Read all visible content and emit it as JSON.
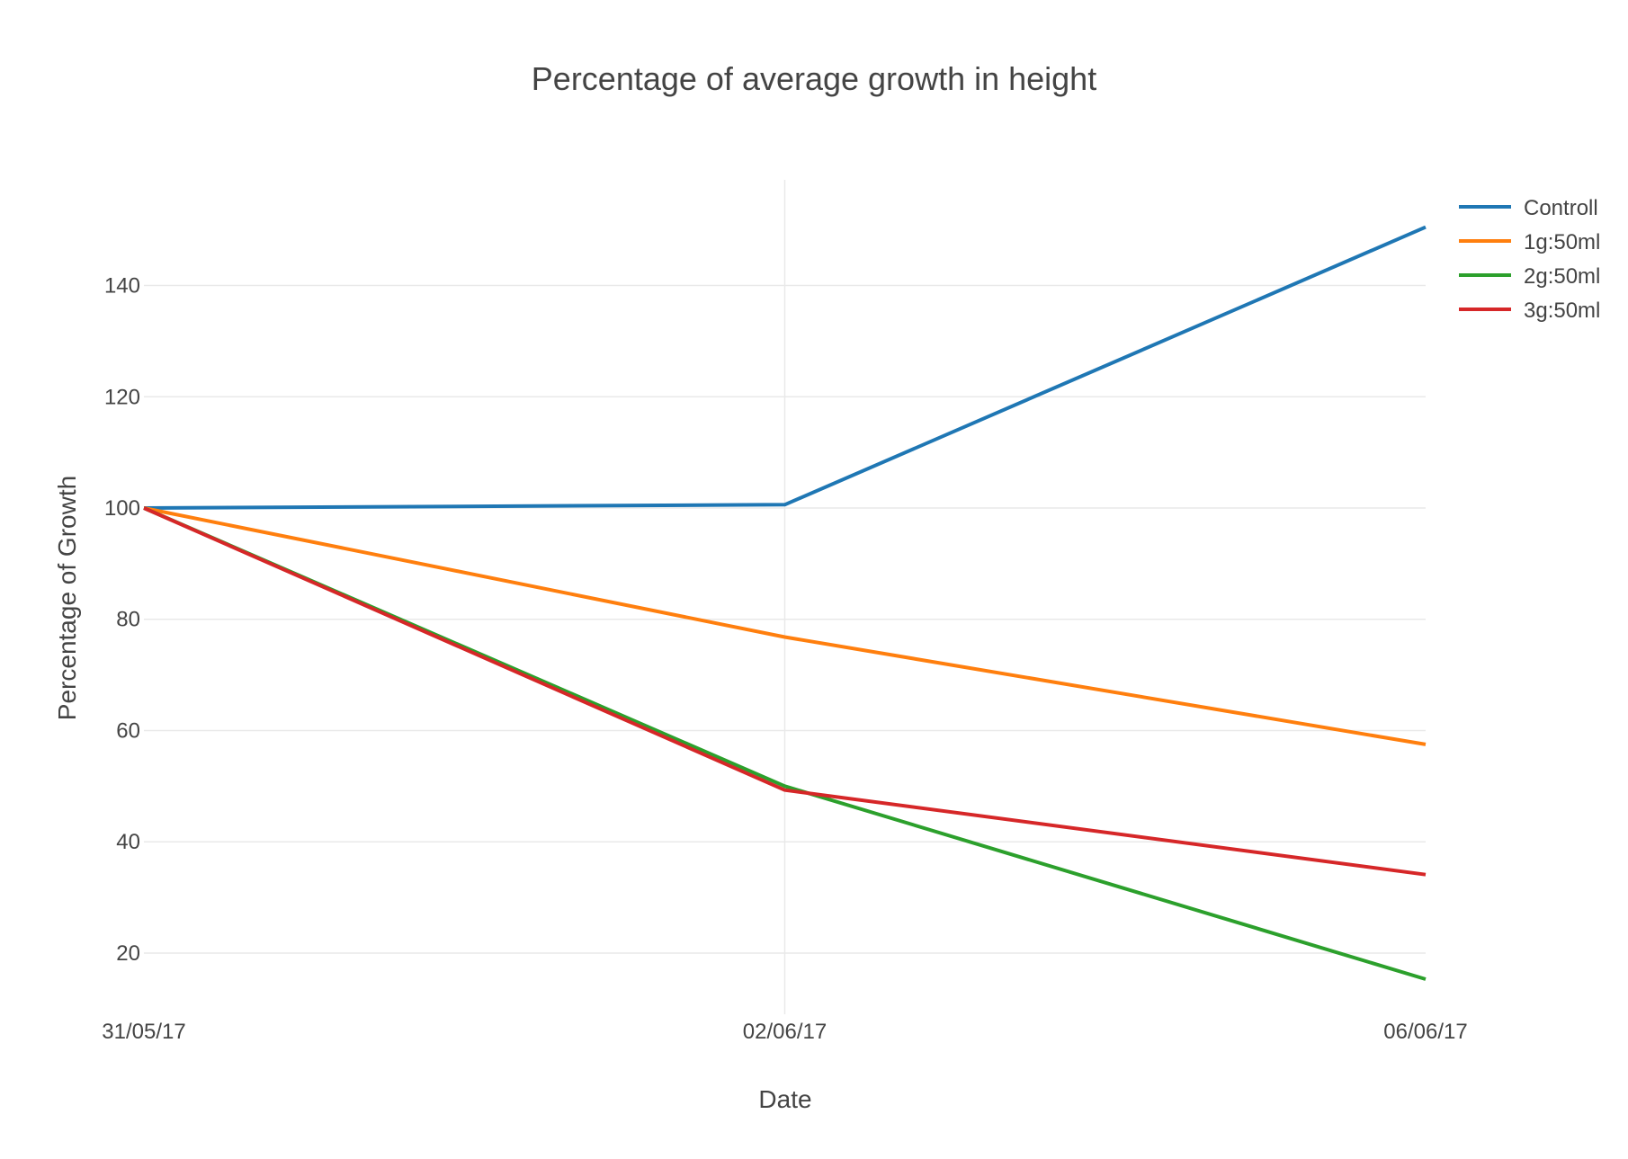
{
  "chart_data": {
    "type": "line",
    "title": "Percentage of average growth in height",
    "xlabel": "Date",
    "ylabel": "Percentage of Growth",
    "x": [
      "31/05/17",
      "02/06/17",
      "06/06/17"
    ],
    "y_ticks": [
      20,
      40,
      60,
      80,
      100,
      120,
      140
    ],
    "ylim": [
      9,
      159
    ],
    "grid": true,
    "legend_position": "top-right",
    "series": [
      {
        "name": "Controll",
        "color": "#1f77b4",
        "values": [
          100,
          100.6,
          150.5
        ]
      },
      {
        "name": "1g:50ml",
        "color": "#ff7f0e",
        "values": [
          100,
          76.8,
          57.5
        ]
      },
      {
        "name": "2g:50ml",
        "color": "#2ca02c",
        "values": [
          100,
          50.0,
          15.3
        ]
      },
      {
        "name": "3g:50ml",
        "color": "#d62728",
        "values": [
          100,
          49.3,
          34.1
        ]
      }
    ]
  }
}
